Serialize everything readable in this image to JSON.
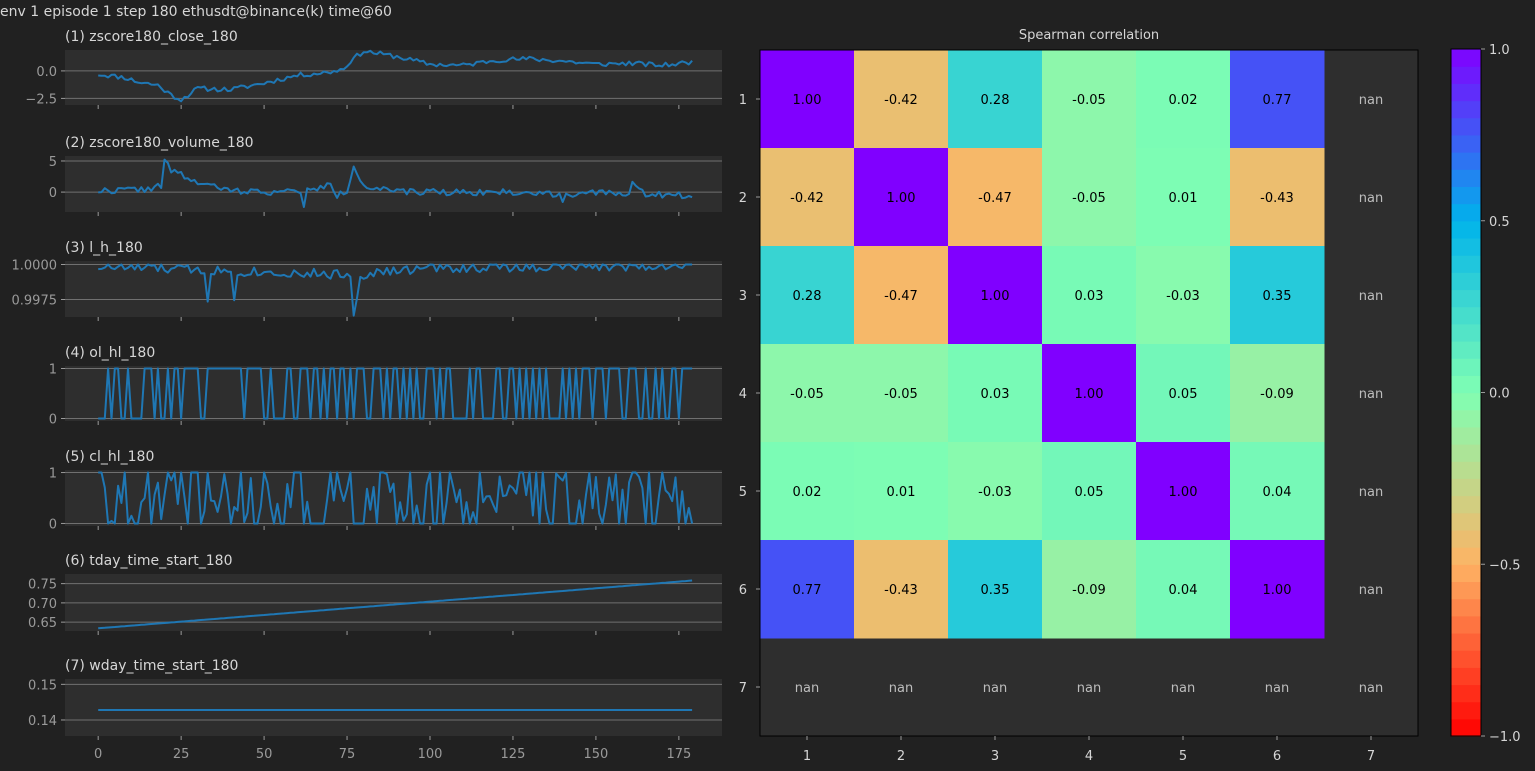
{
  "header": {
    "title": "env 1 episode 1 step 180 ethusdt@binance(k) time@60"
  },
  "colors": {
    "background": "#212121",
    "panel": "#2e2e2e",
    "grid": "#707070",
    "line": "#1f77b4",
    "text": "#d6d6d6",
    "tick_text": "#9a9a9a",
    "nan_cell": "#2e2e2e"
  },
  "chart_data": [
    {
      "type": "line",
      "title": "(1) zscore180_close_180",
      "xlim": [
        -10,
        188
      ],
      "ylim": [
        -3.1,
        1.9
      ],
      "yticks": [
        0.0,
        -2.5
      ],
      "ytick_labels": [
        "0.0",
        "−2.5"
      ],
      "keypoints": [
        [
          0,
          -0.3
        ],
        [
          8,
          -0.6
        ],
        [
          12,
          -1.0
        ],
        [
          18,
          -1.3
        ],
        [
          22,
          -2.2
        ],
        [
          25,
          -2.6
        ],
        [
          30,
          -1.6
        ],
        [
          40,
          -1.7
        ],
        [
          50,
          -1.1
        ],
        [
          60,
          -0.4
        ],
        [
          70,
          -0.1
        ],
        [
          74,
          0.2
        ],
        [
          76,
          0.9
        ],
        [
          80,
          1.8
        ],
        [
          90,
          1.3
        ],
        [
          100,
          0.6
        ],
        [
          110,
          0.5
        ],
        [
          120,
          1.0
        ],
        [
          130,
          1.1
        ],
        [
          140,
          0.9
        ],
        [
          150,
          0.6
        ],
        [
          160,
          0.7
        ],
        [
          170,
          0.5
        ],
        [
          179,
          0.8
        ]
      ],
      "seed": 11,
      "noise": 0.22
    },
    {
      "type": "line",
      "title": "(2) zscore180_volume_180",
      "xlim": [
        -10,
        188
      ],
      "ylim": [
        -3.2,
        5.8
      ],
      "yticks": [
        5,
        0
      ],
      "ytick_labels": [
        "5",
        "0"
      ],
      "keypoints": [
        [
          0,
          0.2
        ],
        [
          15,
          0.5
        ],
        [
          19,
          1.0
        ],
        [
          20,
          5.0
        ],
        [
          22,
          3.5
        ],
        [
          30,
          1.5
        ],
        [
          40,
          0.2
        ],
        [
          55,
          0.0
        ],
        [
          65,
          0.3
        ],
        [
          70,
          1.2
        ],
        [
          72,
          -0.5
        ],
        [
          75,
          0.0
        ],
        [
          77,
          4.5
        ],
        [
          80,
          1.0
        ],
        [
          90,
          0.0
        ],
        [
          120,
          0.0
        ],
        [
          140,
          -0.3
        ],
        [
          160,
          -0.1
        ],
        [
          161,
          1.3
        ],
        [
          165,
          -0.3
        ],
        [
          179,
          -0.6
        ]
      ],
      "seed": 22,
      "noise": 0.5,
      "spikes": [
        [
          62,
          -2.4
        ],
        [
          140,
          -1.6
        ],
        [
          101,
          0.5
        ],
        [
          48,
          0.4
        ]
      ]
    },
    {
      "type": "line",
      "title": "(3) l_h_180",
      "xlim": [
        -10,
        188
      ],
      "ylim": [
        0.99625,
        1.00025
      ],
      "yticks": [
        1.0,
        0.9975
      ],
      "ytick_labels": [
        "1.0000",
        "0.9975"
      ],
      "keypoints": [
        [
          0,
          0.99985
        ],
        [
          40,
          0.99955
        ],
        [
          77,
          0.99925
        ],
        [
          100,
          0.99975
        ],
        [
          179,
          0.99995
        ]
      ],
      "seed": 33,
      "noise": 0.00035,
      "spikes": [
        [
          77,
          0.99635
        ],
        [
          78,
          0.9976
        ],
        [
          33,
          0.99735
        ],
        [
          41,
          0.99745
        ]
      ],
      "max": 1.0
    },
    {
      "type": "binary",
      "title": "(4) ol_hl_180",
      "xlim": [
        -10,
        188
      ],
      "ylim": [
        -0.05,
        1.05
      ],
      "yticks": [
        1,
        0
      ],
      "ytick_labels": [
        "1",
        "0"
      ],
      "seed": 44,
      "p_one": 0.58
    },
    {
      "type": "random01",
      "title": "(5) cl_hl_180",
      "xlim": [
        -10,
        188
      ],
      "ylim": [
        -0.05,
        1.05
      ],
      "yticks": [
        1,
        0
      ],
      "ytick_labels": [
        "1",
        "0"
      ],
      "seed": 55
    },
    {
      "type": "line",
      "title": "(6) tday_time_start_180",
      "xlim": [
        -10,
        188
      ],
      "ylim": [
        0.627,
        0.775
      ],
      "yticks": [
        0.75,
        0.7,
        0.65
      ],
      "ytick_labels": [
        "0.75",
        "0.70",
        "0.65"
      ],
      "keypoints": [
        [
          0,
          0.634
        ],
        [
          179,
          0.758
        ]
      ],
      "seed": 66,
      "noise": 0
    },
    {
      "type": "line",
      "title": "(7) wday_time_start_180",
      "xlim": [
        -10,
        188
      ],
      "ylim": [
        0.1355,
        0.1515
      ],
      "yticks": [
        0.15,
        0.14
      ],
      "ytick_labels": [
        "0.15",
        "0.14"
      ],
      "keypoints": [
        [
          0,
          0.1428
        ],
        [
          179,
          0.1428
        ]
      ],
      "seed": 77,
      "noise": 0
    },
    {
      "type": "heatmap",
      "title": "Spearman correlation",
      "row_labels": [
        "1",
        "2",
        "3",
        "4",
        "5",
        "6",
        "7"
      ],
      "col_labels": [
        "1",
        "2",
        "3",
        "4",
        "5",
        "6",
        "7"
      ],
      "values": [
        [
          1.0,
          -0.42,
          0.28,
          -0.05,
          0.02,
          0.77,
          null
        ],
        [
          -0.42,
          1.0,
          -0.47,
          -0.05,
          0.01,
          -0.43,
          null
        ],
        [
          0.28,
          -0.47,
          1.0,
          0.03,
          -0.03,
          0.35,
          null
        ],
        [
          -0.05,
          -0.05,
          0.03,
          1.0,
          0.05,
          -0.09,
          null
        ],
        [
          0.02,
          0.01,
          -0.03,
          0.05,
          1.0,
          0.04,
          null
        ],
        [
          0.77,
          -0.43,
          0.35,
          -0.09,
          0.04,
          1.0,
          null
        ],
        [
          null,
          null,
          null,
          null,
          null,
          null,
          null
        ]
      ],
      "cell_labels": [
        [
          "1.00",
          "-0.42",
          "0.28",
          "-0.05",
          "0.02",
          "0.77",
          "nan"
        ],
        [
          "-0.42",
          "1.00",
          "-0.47",
          "-0.05",
          "0.01",
          "-0.43",
          "nan"
        ],
        [
          "0.28",
          "-0.47",
          "1.00",
          "0.03",
          "-0.03",
          "0.35",
          "nan"
        ],
        [
          "-0.05",
          "-0.05",
          "0.03",
          "1.00",
          "0.05",
          "-0.09",
          "nan"
        ],
        [
          "0.02",
          "0.01",
          "-0.03",
          "0.05",
          "1.00",
          "0.04",
          "nan"
        ],
        [
          "0.77",
          "-0.43",
          "0.35",
          "-0.09",
          "0.04",
          "1.00",
          "nan"
        ],
        [
          "nan",
          "nan",
          "nan",
          "nan",
          "nan",
          "nan",
          "nan"
        ]
      ],
      "colormap": "rainbow_r",
      "vmin": -1.0,
      "vmax": 1.0,
      "colorbar_ticks": [
        1.0,
        0.5,
        0.0,
        -0.5,
        -1.0
      ],
      "colorbar_tick_labels": [
        "1.0",
        "0.5",
        "0.0",
        "−0.5",
        "−1.0"
      ],
      "colorbar_levels": 40
    }
  ],
  "x_axis": {
    "ticks": [
      0,
      25,
      50,
      75,
      100,
      125,
      150,
      175
    ],
    "tick_labels": [
      "0",
      "25",
      "50",
      "75",
      "100",
      "125",
      "150",
      "175"
    ],
    "n_points": 180
  }
}
